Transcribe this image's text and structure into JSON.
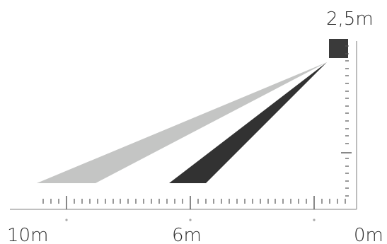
{
  "diagram": {
    "height_label": "2,5m",
    "distance_labels": {
      "far": "10m",
      "mid": "6m",
      "near": "0m"
    },
    "colors": {
      "upper_beam": "#c4c5c4",
      "lower_beam": "#323232",
      "sensor": "#3a3a3a",
      "axis": "#9a9a9a",
      "ticks": "#555555",
      "dots": "#a8a8a8"
    }
  }
}
